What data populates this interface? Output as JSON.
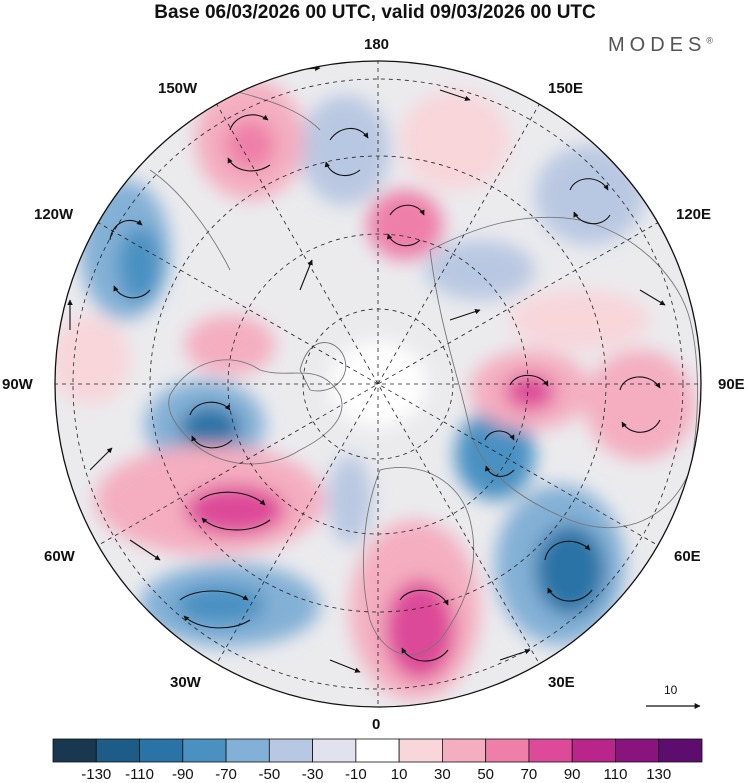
{
  "title": "Base 06/03/2026 00 UTC, valid 09/03/2026 00 UTC",
  "brand": "MODES",
  "brand_mark": "®",
  "longitude_labels": {
    "top": "180",
    "top_left": "150W",
    "top_right": "150E",
    "upper_left": "120W",
    "upper_right": "120E",
    "left": "90W",
    "right": "90E",
    "lower_left": "60W",
    "lower_right": "60E",
    "bottom_left": "30W",
    "bottom_right": "30E",
    "bottom": "0"
  },
  "reference_vector": {
    "label": "10"
  },
  "colorbar": {
    "labels": [
      "-130",
      "-110",
      "-90",
      "-70",
      "-50",
      "-30",
      "-10",
      "10",
      "30",
      "50",
      "70",
      "90",
      "110",
      "130"
    ],
    "colors": [
      "#17384f",
      "#1c5c86",
      "#2a73a6",
      "#4a91c2",
      "#83b0d6",
      "#b9c8e2",
      "#e2e2ef",
      "#ffffff",
      "#f8d6da",
      "#f4aec0",
      "#ee7fa8",
      "#dd4a99",
      "#b9258a",
      "#8a147e",
      "#5c0d6e"
    ]
  },
  "map_colors": {
    "background": "#ebebee",
    "land_line": "#777777",
    "grid_line": "#222222",
    "arrow": "#111111"
  }
}
